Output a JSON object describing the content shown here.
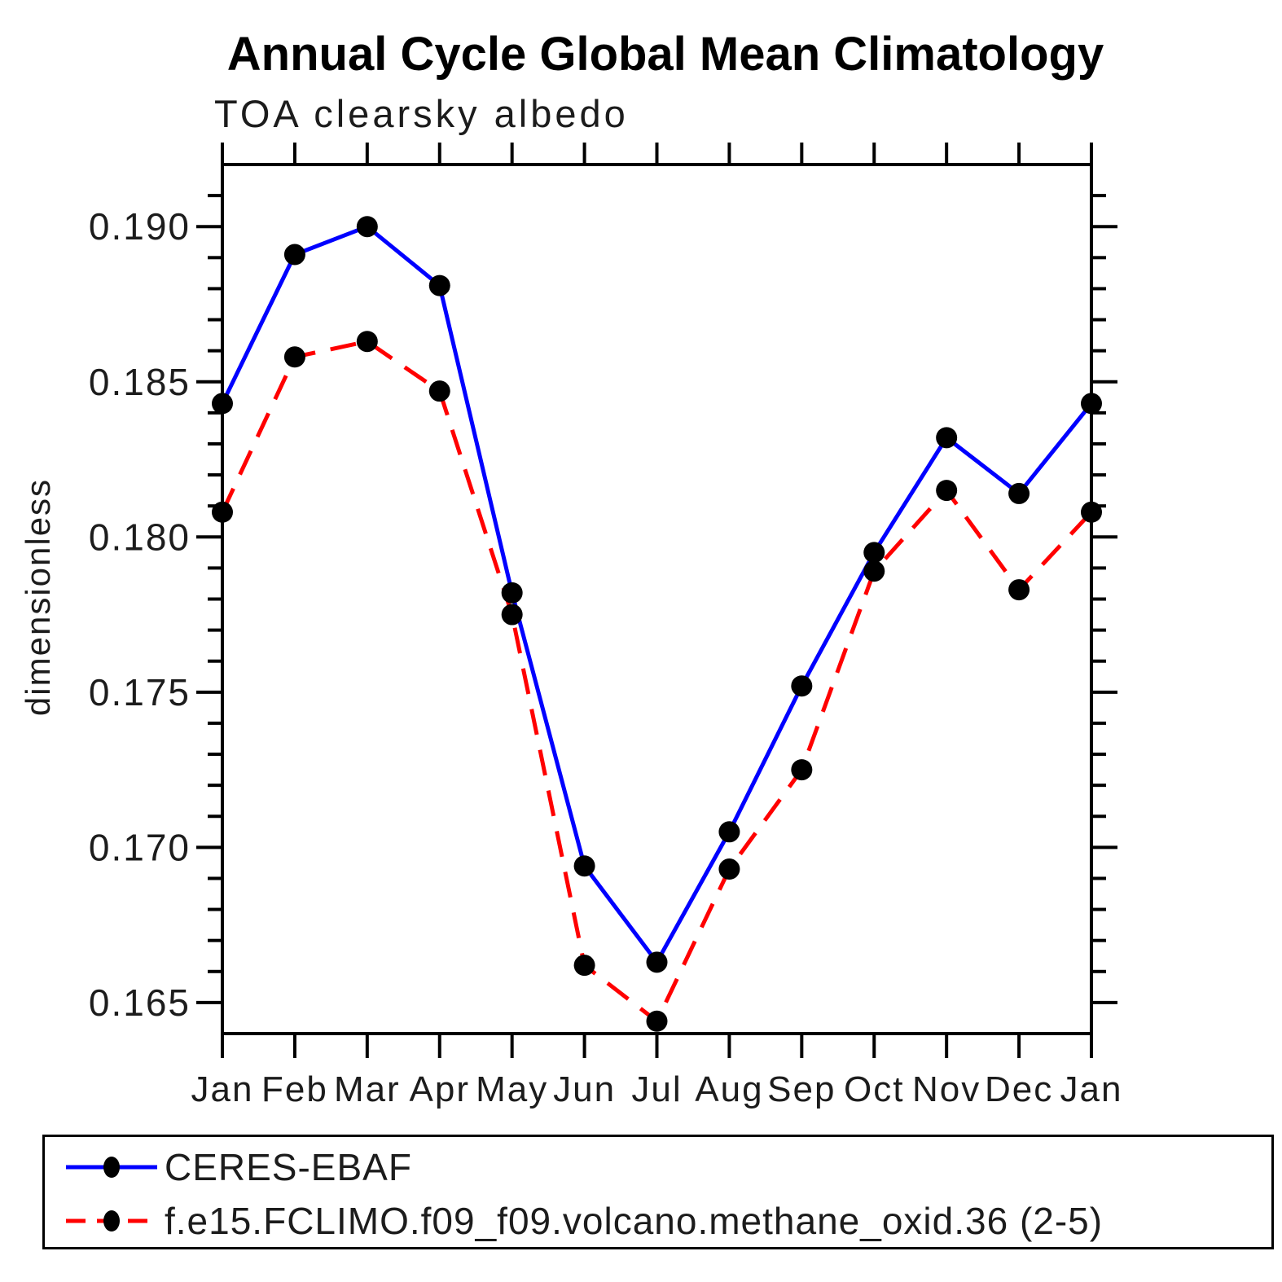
{
  "chart_data": {
    "type": "line",
    "title": "Annual Cycle Global Mean Climatology",
    "subtitle": "TOA clearsky albedo",
    "ylabel": "dimensionless",
    "xlabel": "",
    "categories": [
      "Jan",
      "Feb",
      "Mar",
      "Apr",
      "May",
      "Jun",
      "Jul",
      "Aug",
      "Sep",
      "Oct",
      "Nov",
      "Dec",
      "Jan"
    ],
    "series": [
      {
        "name": "CERES-EBAF",
        "color": "#0000ff",
        "line_style": "solid",
        "marker": "filled-circle",
        "values": [
          0.1843,
          0.1891,
          0.19,
          0.1881,
          0.1782,
          0.1694,
          0.1663,
          0.1705,
          0.1752,
          0.1795,
          0.1832,
          0.1814,
          0.1843
        ]
      },
      {
        "name": "f.e15.FCLIMO.f09_f09.volcano.methane_oxid.36 (2-5)",
        "color": "#ff0000",
        "line_style": "dashed",
        "marker": "filled-circle",
        "values": [
          0.1808,
          0.1858,
          0.1863,
          0.1847,
          0.1775,
          0.1662,
          0.1644,
          0.1693,
          0.1725,
          0.1789,
          0.1815,
          0.1783,
          0.1808
        ]
      }
    ],
    "ylim": [
      0.164,
      0.192
    ],
    "yticks_major": [
      0.165,
      0.17,
      0.175,
      0.18,
      0.185,
      0.19
    ],
    "ytick_labels": [
      "0.165",
      "0.170",
      "0.175",
      "0.180",
      "0.185",
      "0.190"
    ],
    "minor_tick_step": 0.001,
    "grid": false,
    "legend_position": "bottom",
    "marker_color": "#000000"
  },
  "colors": {
    "background": "#ffffff",
    "axis": "#000000",
    "series1": "#0000ff",
    "series2": "#ff0000",
    "marker": "#000000"
  }
}
